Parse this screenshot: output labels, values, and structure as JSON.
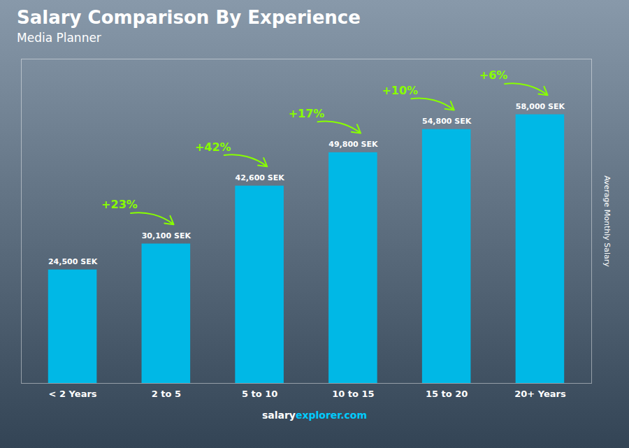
{
  "chart_data": {
    "type": "bar",
    "title": "Salary Comparison By Experience",
    "subtitle": "Media Planner",
    "ylabel": "Average Monthly Salary",
    "footer": [
      "salary",
      "explorer.com"
    ],
    "categories": [
      "< 2 Years",
      "2 to 5",
      "5 to 10",
      "10 to 15",
      "15 to 20",
      "20+ Years"
    ],
    "values": [
      24500,
      30100,
      42600,
      49800,
      54800,
      58000
    ],
    "value_labels": [
      "24,500 SEK",
      "30,100 SEK",
      "42,600 SEK",
      "49,800 SEK",
      "54,800 SEK",
      "58,000 SEK"
    ],
    "data_labels": true,
    "color": "#00b8e6",
    "ylim": [
      0,
      70000
    ],
    "tick_labels": "x",
    "grid": false,
    "annotations": [
      {
        "text": "+23%",
        "color": "#88ff00"
      },
      {
        "text": "+42%",
        "color": "#88ff00"
      },
      {
        "text": "+17%",
        "color": "#88ff00"
      },
      {
        "text": "+10%",
        "color": "#88ff00"
      },
      {
        "text": "+6%",
        "color": "#88ff00"
      }
    ]
  }
}
